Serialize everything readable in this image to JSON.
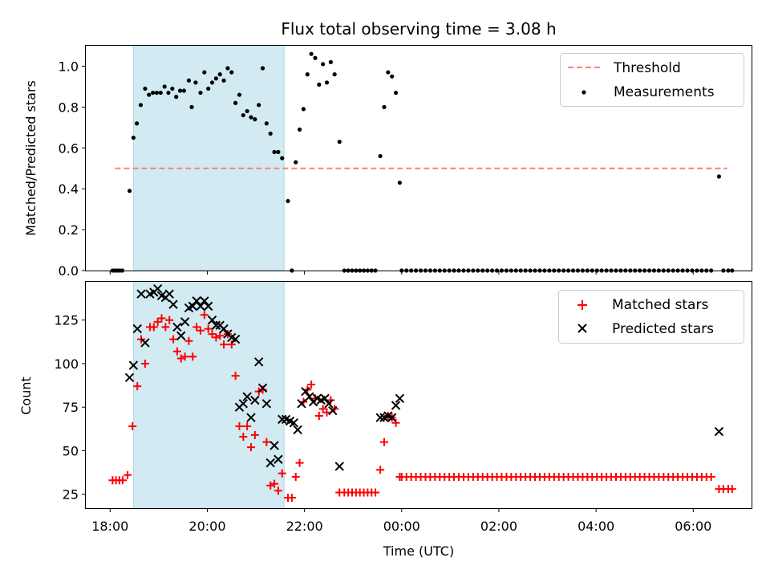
{
  "chart_data": [
    {
      "type": "scatter",
      "title": "Flux total observing time = 3.08 h",
      "xlabel": "",
      "ylabel": "Matched/Predicted stars",
      "xlim": [
        17.5,
        31.2
      ],
      "ylim": [
        0,
        1.1
      ],
      "x_ticks": [
        18,
        20,
        22,
        24,
        26,
        28,
        30
      ],
      "y_ticks": [
        0.0,
        0.2,
        0.4,
        0.6,
        0.8,
        1.0
      ],
      "y_tick_labels": [
        "0.0",
        "0.2",
        "0.4",
        "0.6",
        "0.8",
        "1.0"
      ],
      "shaded_span": [
        18.48,
        21.58
      ],
      "shaded_color": "#add8e6",
      "threshold": {
        "name": "Threshold",
        "value": 0.5,
        "x_range": [
          18.1,
          30.7
        ],
        "color": "#ff7f7f",
        "style": "dashed"
      },
      "legend": {
        "position": "top-right",
        "entries": [
          "Threshold",
          "Measurements"
        ]
      },
      "series": [
        {
          "name": "Measurements",
          "color": "#000000",
          "marker": "dot",
          "points": [
            [
              18.05,
              0
            ],
            [
              18.1,
              0
            ],
            [
              18.15,
              0
            ],
            [
              18.2,
              0
            ],
            [
              18.25,
              0
            ],
            [
              18.4,
              0.39
            ],
            [
              18.48,
              0.65
            ],
            [
              18.55,
              0.72
            ],
            [
              18.63,
              0.81
            ],
            [
              18.72,
              0.89
            ],
            [
              18.8,
              0.86
            ],
            [
              18.88,
              0.87
            ],
            [
              18.96,
              0.87
            ],
            [
              19.04,
              0.87
            ],
            [
              19.12,
              0.9
            ],
            [
              19.2,
              0.87
            ],
            [
              19.28,
              0.89
            ],
            [
              19.36,
              0.85
            ],
            [
              19.44,
              0.88
            ],
            [
              19.52,
              0.88
            ],
            [
              19.62,
              0.93
            ],
            [
              19.68,
              0.8
            ],
            [
              19.76,
              0.92
            ],
            [
              19.86,
              0.87
            ],
            [
              19.94,
              0.97
            ],
            [
              20.02,
              0.89
            ],
            [
              20.1,
              0.92
            ],
            [
              20.18,
              0.94
            ],
            [
              20.26,
              0.96
            ],
            [
              20.34,
              0.93
            ],
            [
              20.42,
              0.99
            ],
            [
              20.5,
              0.97
            ],
            [
              20.58,
              0.82
            ],
            [
              20.66,
              0.86
            ],
            [
              20.74,
              0.76
            ],
            [
              20.82,
              0.78
            ],
            [
              20.9,
              0.75
            ],
            [
              20.98,
              0.74
            ],
            [
              21.06,
              0.81
            ],
            [
              21.14,
              0.99
            ],
            [
              21.22,
              0.72
            ],
            [
              21.3,
              0.67
            ],
            [
              21.38,
              0.58
            ],
            [
              21.46,
              0.58
            ],
            [
              21.54,
              0.55
            ],
            [
              21.66,
              0.34
            ],
            [
              21.74,
              0
            ],
            [
              21.82,
              0.53
            ],
            [
              21.9,
              0.69
            ],
            [
              21.98,
              0.79
            ],
            [
              22.06,
              0.96
            ],
            [
              22.14,
              1.06
            ],
            [
              22.22,
              1.04
            ],
            [
              22.3,
              0.91
            ],
            [
              22.38,
              1.01
            ],
            [
              22.46,
              0.92
            ],
            [
              22.54,
              1.02
            ],
            [
              22.62,
              0.96
            ],
            [
              22.72,
              0.63
            ],
            [
              22.82,
              0
            ],
            [
              22.9,
              0
            ],
            [
              22.98,
              0
            ],
            [
              23.06,
              0
            ],
            [
              23.14,
              0
            ],
            [
              23.22,
              0
            ],
            [
              23.3,
              0
            ],
            [
              23.38,
              0
            ],
            [
              23.46,
              0
            ],
            [
              23.56,
              0.56
            ],
            [
              23.64,
              0.8
            ],
            [
              23.72,
              0.97
            ],
            [
              23.8,
              0.95
            ],
            [
              23.88,
              0.87
            ],
            [
              23.96,
              0.43
            ]
          ],
          "flat_run": {
            "x_start": 24.0,
            "x_end": 30.45,
            "step": 0.098,
            "y": 0
          },
          "tail_points": [
            [
              30.53,
              0.46
            ],
            [
              30.62,
              0
            ],
            [
              30.72,
              0
            ],
            [
              30.8,
              0
            ]
          ]
        }
      ]
    },
    {
      "type": "scatter",
      "title": "",
      "xlabel": "Time (UTC)",
      "ylabel": "Count",
      "xlim": [
        17.5,
        31.2
      ],
      "ylim": [
        17,
        147
      ],
      "x_ticks": [
        18,
        20,
        22,
        24,
        26,
        28,
        30
      ],
      "x_tick_labels": [
        "18:00",
        "20:00",
        "22:00",
        "00:00",
        "02:00",
        "04:00",
        "06:00"
      ],
      "y_ticks": [
        25,
        50,
        75,
        100,
        125
      ],
      "y_tick_labels": [
        "25",
        "50",
        "75",
        "100",
        "125"
      ],
      "shaded_span": [
        18.48,
        21.58
      ],
      "shaded_color": "#add8e6",
      "legend": {
        "position": "top-right",
        "entries": [
          "Matched stars",
          "Predicted stars"
        ]
      },
      "series": [
        {
          "name": "Matched stars",
          "color": "#ff0000",
          "marker": "plus",
          "points": [
            [
              18.05,
              33
            ],
            [
              18.12,
              33
            ],
            [
              18.19,
              33
            ],
            [
              18.26,
              33
            ],
            [
              18.36,
              36
            ],
            [
              18.46,
              64
            ],
            [
              18.56,
              87
            ],
            [
              18.64,
              114
            ],
            [
              18.72,
              100
            ],
            [
              18.82,
              121
            ],
            [
              18.9,
              121
            ],
            [
              18.98,
              124
            ],
            [
              19.06,
              126
            ],
            [
              19.14,
              121
            ],
            [
              19.22,
              125
            ],
            [
              19.3,
              114
            ],
            [
              19.38,
              107
            ],
            [
              19.46,
              103
            ],
            [
              19.54,
              104
            ],
            [
              19.62,
              113
            ],
            [
              19.7,
              104
            ],
            [
              19.78,
              121
            ],
            [
              19.86,
              119
            ],
            [
              19.94,
              128
            ],
            [
              20.02,
              120
            ],
            [
              20.1,
              117
            ],
            [
              20.18,
              115
            ],
            [
              20.26,
              116
            ],
            [
              20.34,
              111
            ],
            [
              20.42,
              117
            ],
            [
              20.5,
              111
            ],
            [
              20.58,
              93
            ],
            [
              20.66,
              64
            ],
            [
              20.74,
              58
            ],
            [
              20.82,
              64
            ],
            [
              20.9,
              52
            ],
            [
              20.98,
              59
            ],
            [
              21.06,
              84
            ],
            [
              21.14,
              85
            ],
            [
              21.22,
              55
            ],
            [
              21.3,
              30
            ],
            [
              21.38,
              31
            ],
            [
              21.46,
              27
            ],
            [
              21.54,
              37
            ],
            [
              21.66,
              23
            ],
            [
              21.74,
              23
            ],
            [
              21.82,
              35
            ],
            [
              21.9,
              43
            ],
            [
              21.98,
              78
            ],
            [
              22.06,
              85
            ],
            [
              22.14,
              88
            ],
            [
              22.22,
              80
            ],
            [
              22.3,
              70
            ],
            [
              22.38,
              74
            ],
            [
              22.46,
              72
            ],
            [
              22.54,
              79
            ],
            [
              22.62,
              74
            ],
            [
              22.72,
              26
            ],
            [
              22.82,
              26
            ],
            [
              22.9,
              26
            ],
            [
              22.98,
              26
            ],
            [
              23.06,
              26
            ],
            [
              23.14,
              26
            ],
            [
              23.22,
              26
            ],
            [
              23.3,
              26
            ],
            [
              23.38,
              26
            ],
            [
              23.46,
              26
            ],
            [
              23.56,
              39
            ],
            [
              23.64,
              55
            ],
            [
              23.72,
              70
            ],
            [
              23.8,
              69
            ],
            [
              23.88,
              66
            ],
            [
              23.96,
              35
            ]
          ],
          "flat_run": {
            "x_start": 24.0,
            "x_end": 30.45,
            "step": 0.098,
            "y": 35
          },
          "tail_points": [
            [
              30.53,
              28
            ],
            [
              30.62,
              28
            ],
            [
              30.72,
              28
            ],
            [
              30.8,
              28
            ]
          ]
        },
        {
          "name": "Predicted stars",
          "color": "#000000",
          "marker": "x",
          "points": [
            [
              18.4,
              92
            ],
            [
              18.48,
              99
            ],
            [
              18.56,
              120
            ],
            [
              18.64,
              140
            ],
            [
              18.72,
              112
            ],
            [
              18.82,
              140
            ],
            [
              18.9,
              141
            ],
            [
              18.98,
              143
            ],
            [
              19.06,
              139
            ],
            [
              19.14,
              138
            ],
            [
              19.22,
              140
            ],
            [
              19.3,
              134
            ],
            [
              19.38,
              121
            ],
            [
              19.46,
              116
            ],
            [
              19.54,
              124
            ],
            [
              19.62,
              132
            ],
            [
              19.7,
              133
            ],
            [
              19.78,
              136
            ],
            [
              19.86,
              133
            ],
            [
              19.94,
              136
            ],
            [
              20.02,
              133
            ],
            [
              20.1,
              125
            ],
            [
              20.18,
              122
            ],
            [
              20.26,
              122
            ],
            [
              20.34,
              120
            ],
            [
              20.42,
              117
            ],
            [
              20.5,
              115
            ],
            [
              20.58,
              114
            ],
            [
              20.66,
              75
            ],
            [
              20.74,
              77
            ],
            [
              20.82,
              81
            ],
            [
              20.9,
              69
            ],
            [
              20.98,
              79
            ],
            [
              21.06,
              101
            ],
            [
              21.14,
              86
            ],
            [
              21.22,
              77
            ],
            [
              21.3,
              43
            ],
            [
              21.38,
              53
            ],
            [
              21.46,
              45
            ],
            [
              21.54,
              68
            ],
            [
              21.62,
              68
            ],
            [
              21.7,
              67
            ],
            [
              21.78,
              66
            ],
            [
              21.86,
              62
            ],
            [
              21.94,
              77
            ],
            [
              22.02,
              84
            ],
            [
              22.1,
              81
            ],
            [
              22.18,
              78
            ],
            [
              22.26,
              80
            ],
            [
              22.34,
              79
            ],
            [
              22.42,
              80
            ],
            [
              22.5,
              77
            ],
            [
              22.58,
              73
            ],
            [
              22.72,
              41
            ],
            [
              23.56,
              69
            ],
            [
              23.64,
              69
            ],
            [
              23.72,
              70
            ],
            [
              23.8,
              69
            ],
            [
              23.88,
              76
            ],
            [
              23.96,
              80
            ],
            [
              30.53,
              61
            ]
          ]
        }
      ]
    }
  ]
}
